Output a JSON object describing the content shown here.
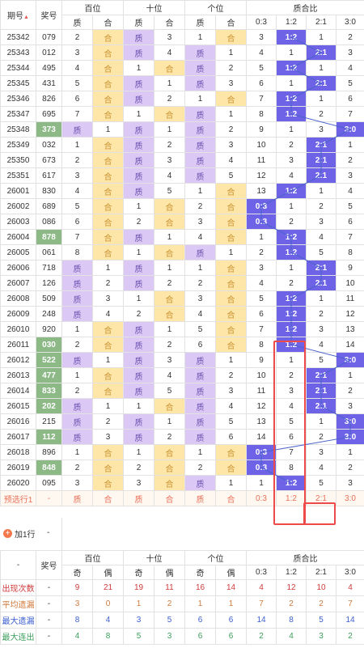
{
  "header": {
    "col_period": "期号",
    "col_prize": "奖号",
    "group_hundreds": "百位",
    "group_tens": "十位",
    "group_ones": "个位",
    "group_ratio": "质合比",
    "sub_prime": "质",
    "sub_comp": "合",
    "ratio_cols": [
      "0:3",
      "1:2",
      "2:1",
      "3:0"
    ]
  },
  "rows": [
    {
      "p": "25342",
      "n": "079",
      "g": false,
      "h": [
        "2",
        "合"
      ],
      "t": [
        "质",
        "3"
      ],
      "o": [
        "1",
        "合"
      ],
      "r": [
        "3",
        "1:2",
        "1",
        "2"
      ],
      "rc": 1
    },
    {
      "p": "25343",
      "n": "012",
      "g": false,
      "h": [
        "3",
        "合"
      ],
      "t": [
        "质",
        "4"
      ],
      "o": [
        "质",
        "1"
      ],
      "r": [
        "4",
        "1",
        "2:1",
        "3"
      ],
      "rc": 2
    },
    {
      "p": "25344",
      "n": "495",
      "g": false,
      "h": [
        "4",
        "合"
      ],
      "t": [
        "1",
        "合"
      ],
      "o": [
        "质",
        "2"
      ],
      "r": [
        "5",
        "1:2",
        "1",
        "4"
      ],
      "rc": 1
    },
    {
      "p": "25345",
      "n": "431",
      "g": false,
      "h": [
        "5",
        "合"
      ],
      "t": [
        "质",
        "1"
      ],
      "o": [
        "质",
        "3"
      ],
      "r": [
        "6",
        "1",
        "2:1",
        "5"
      ],
      "rc": 2
    },
    {
      "p": "25346",
      "n": "826",
      "h": [
        "6",
        "合"
      ],
      "t": [
        "质",
        "2"
      ],
      "o": [
        "1",
        "合"
      ],
      "r": [
        "7",
        "1:2",
        "1",
        "6"
      ],
      "rc": 1
    },
    {
      "p": "25347",
      "n": "695",
      "h": [
        "7",
        "合"
      ],
      "t": [
        "1",
        "合"
      ],
      "o": [
        "质",
        "1"
      ],
      "r": [
        "8",
        "1:2",
        "2",
        "7"
      ],
      "rc": 1,
      "sep": true
    },
    {
      "p": "25348",
      "n": "373",
      "g": true,
      "h": [
        "质",
        "1"
      ],
      "t": [
        "质",
        "1"
      ],
      "o": [
        "质",
        "2"
      ],
      "r": [
        "9",
        "1",
        "3",
        "3:0"
      ],
      "rc": 3
    },
    {
      "p": "25349",
      "n": "032",
      "h": [
        "1",
        "合"
      ],
      "t": [
        "质",
        "2"
      ],
      "o": [
        "质",
        "3"
      ],
      "r": [
        "10",
        "2",
        "2:1",
        "1"
      ],
      "rc": 2
    },
    {
      "p": "25350",
      "n": "673",
      "h": [
        "2",
        "合"
      ],
      "t": [
        "质",
        "3"
      ],
      "o": [
        "质",
        "4"
      ],
      "r": [
        "11",
        "3",
        "2:1",
        "2"
      ],
      "rc": 2
    },
    {
      "p": "25351",
      "n": "617",
      "h": [
        "3",
        "合"
      ],
      "t": [
        "质",
        "4"
      ],
      "o": [
        "质",
        "5"
      ],
      "r": [
        "12",
        "4",
        "2:1",
        "3"
      ],
      "rc": 2
    },
    {
      "p": "26001",
      "n": "830",
      "h": [
        "4",
        "合"
      ],
      "t": [
        "质",
        "5"
      ],
      "o": [
        "1",
        "合"
      ],
      "r": [
        "13",
        "1:2",
        "1",
        "4"
      ],
      "rc": 1,
      "sep": true
    },
    {
      "p": "26002",
      "n": "689",
      "h": [
        "5",
        "合"
      ],
      "t": [
        "1",
        "合"
      ],
      "o": [
        "2",
        "合"
      ],
      "r": [
        "0:3",
        "1",
        "2",
        "5"
      ],
      "rc": 0
    },
    {
      "p": "26003",
      "n": "086",
      "h": [
        "6",
        "合"
      ],
      "t": [
        "2",
        "合"
      ],
      "o": [
        "3",
        "合"
      ],
      "r": [
        "0:3",
        "2",
        "3",
        "6"
      ],
      "rc": 0
    },
    {
      "p": "26004",
      "n": "878",
      "g": true,
      "h": [
        "7",
        "合"
      ],
      "t": [
        "质",
        "1"
      ],
      "o": [
        "4",
        "合"
      ],
      "r": [
        "1",
        "1:2",
        "4",
        "7"
      ],
      "rc": 1
    },
    {
      "p": "26005",
      "n": "061",
      "h": [
        "8",
        "合"
      ],
      "t": [
        "1",
        "合"
      ],
      "o": [
        "质",
        "1"
      ],
      "r": [
        "2",
        "1:2",
        "5",
        "8"
      ],
      "rc": 1
    },
    {
      "p": "26006",
      "n": "718",
      "h": [
        "质",
        "1"
      ],
      "t": [
        "质",
        "1"
      ],
      "o": [
        "1",
        "合"
      ],
      "r": [
        "3",
        "1",
        "2:1",
        "9"
      ],
      "rc": 2,
      "sep": true
    },
    {
      "p": "26007",
      "n": "126",
      "h": [
        "质",
        "2"
      ],
      "t": [
        "质",
        "2"
      ],
      "o": [
        "2",
        "合"
      ],
      "r": [
        "4",
        "2",
        "2:1",
        "10"
      ],
      "rc": 2
    },
    {
      "p": "26008",
      "n": "509",
      "h": [
        "质",
        "3"
      ],
      "t": [
        "1",
        "合"
      ],
      "o": [
        "3",
        "合"
      ],
      "r": [
        "5",
        "1:2",
        "1",
        "11"
      ],
      "rc": 1
    },
    {
      "p": "26009",
      "n": "248",
      "h": [
        "质",
        "4"
      ],
      "t": [
        "2",
        "合"
      ],
      "o": [
        "4",
        "合"
      ],
      "r": [
        "6",
        "1:2",
        "2",
        "12"
      ],
      "rc": 1
    },
    {
      "p": "26010",
      "n": "920",
      "h": [
        "1",
        "合"
      ],
      "t": [
        "质",
        "1"
      ],
      "o": [
        "5",
        "合"
      ],
      "r": [
        "7",
        "1:2",
        "3",
        "13"
      ],
      "rc": 1
    },
    {
      "p": "26011",
      "n": "030",
      "g": true,
      "h": [
        "2",
        "合"
      ],
      "t": [
        "质",
        "2"
      ],
      "o": [
        "6",
        "合"
      ],
      "r": [
        "8",
        "1:2",
        "4",
        "14"
      ],
      "rc": 1,
      "sep": true
    },
    {
      "p": "26012",
      "n": "522",
      "g": true,
      "h": [
        "质",
        "1"
      ],
      "t": [
        "质",
        "3"
      ],
      "o": [
        "质",
        "1"
      ],
      "r": [
        "9",
        "1",
        "5",
        "3:0"
      ],
      "rc": 3
    },
    {
      "p": "26013",
      "n": "477",
      "g": true,
      "h": [
        "1",
        "合"
      ],
      "t": [
        "质",
        "4"
      ],
      "o": [
        "质",
        "2"
      ],
      "r": [
        "10",
        "2",
        "2:1",
        "1"
      ],
      "rc": 2
    },
    {
      "p": "26014",
      "n": "833",
      "g": true,
      "h": [
        "2",
        "合"
      ],
      "t": [
        "质",
        "5"
      ],
      "o": [
        "质",
        "3"
      ],
      "r": [
        "11",
        "3",
        "2:1",
        "2"
      ],
      "rc": 2
    },
    {
      "p": "26015",
      "n": "202",
      "g": true,
      "h": [
        "质",
        "1"
      ],
      "t": [
        "1",
        "合"
      ],
      "o": [
        "质",
        "4"
      ],
      "r": [
        "12",
        "4",
        "2:1",
        "3"
      ],
      "rc": 2
    },
    {
      "p": "26016",
      "n": "215",
      "h": [
        "质",
        "2"
      ],
      "t": [
        "质",
        "1"
      ],
      "o": [
        "质",
        "5"
      ],
      "r": [
        "13",
        "5",
        "1",
        "3:0"
      ],
      "rc": 3,
      "sep": true
    },
    {
      "p": "26017",
      "n": "112",
      "g": true,
      "h": [
        "质",
        "3"
      ],
      "t": [
        "质",
        "2"
      ],
      "o": [
        "质",
        "6"
      ],
      "r": [
        "14",
        "6",
        "2",
        "3:0"
      ],
      "rc": 3
    },
    {
      "p": "26018",
      "n": "896",
      "h": [
        "1",
        "合"
      ],
      "t": [
        "1",
        "合"
      ],
      "o": [
        "1",
        "合"
      ],
      "r": [
        "0:3",
        "7",
        "3",
        "1"
      ],
      "rc": 0
    },
    {
      "p": "26019",
      "n": "848",
      "g": true,
      "h": [
        "2",
        "合"
      ],
      "t": [
        "2",
        "合"
      ],
      "o": [
        "2",
        "合"
      ],
      "r": [
        "0:3",
        "8",
        "4",
        "2"
      ],
      "rc": 0
    },
    {
      "p": "26020",
      "n": "095",
      "h": [
        "3",
        "合"
      ],
      "t": [
        "3",
        "合"
      ],
      "o": [
        "质",
        "1"
      ],
      "r": [
        "1",
        "1:2",
        "5",
        "3"
      ],
      "rc": 1
    }
  ],
  "predict": {
    "label": "预选行1",
    "prize": "-",
    "cells": [
      "质",
      "合",
      "质",
      "合",
      "质",
      "合"
    ],
    "ratio": [
      "0:3",
      "1:2",
      "2:1",
      "3:0"
    ]
  },
  "add_row": {
    "label": "加1行",
    "value": "-"
  },
  "stats_header": {
    "col_blank": "-",
    "col_prize": "奖号",
    "group_hundreds": "百位",
    "group_tens": "十位",
    "group_ones": "个位",
    "group_ratio": "质合比",
    "odd": "奇",
    "even": "偶",
    "ratio_cols": [
      "0:3",
      "1:2",
      "2:1",
      "3:0"
    ]
  },
  "stats": [
    {
      "label": "出现次数",
      "cls": "red",
      "prize": "-",
      "vals": [
        "9",
        "21",
        "19",
        "11",
        "16",
        "14",
        "4",
        "12",
        "10",
        "4"
      ]
    },
    {
      "label": "平均遗漏",
      "cls": "ora",
      "prize": "-",
      "vals": [
        "3",
        "0",
        "1",
        "2",
        "1",
        "1",
        "7",
        "2",
        "2",
        "7"
      ]
    },
    {
      "label": "最大遗漏",
      "cls": "blu",
      "prize": "-",
      "vals": [
        "8",
        "4",
        "3",
        "5",
        "6",
        "6",
        "14",
        "8",
        "5",
        "14"
      ]
    },
    {
      "label": "最大连出",
      "cls": "grn",
      "prize": "-",
      "vals": [
        "4",
        "8",
        "5",
        "3",
        "6",
        "6",
        "2",
        "4",
        "3",
        "2"
      ]
    }
  ],
  "colors": {
    "purple": "#dcc8f5",
    "orange": "#fde6a8",
    "green": "#8db987",
    "blue": "#6e63e6",
    "red": "#ef4a4a"
  },
  "icons": {
    "sort": "sort-triangle-icon",
    "add": "plus-circle-icon"
  }
}
